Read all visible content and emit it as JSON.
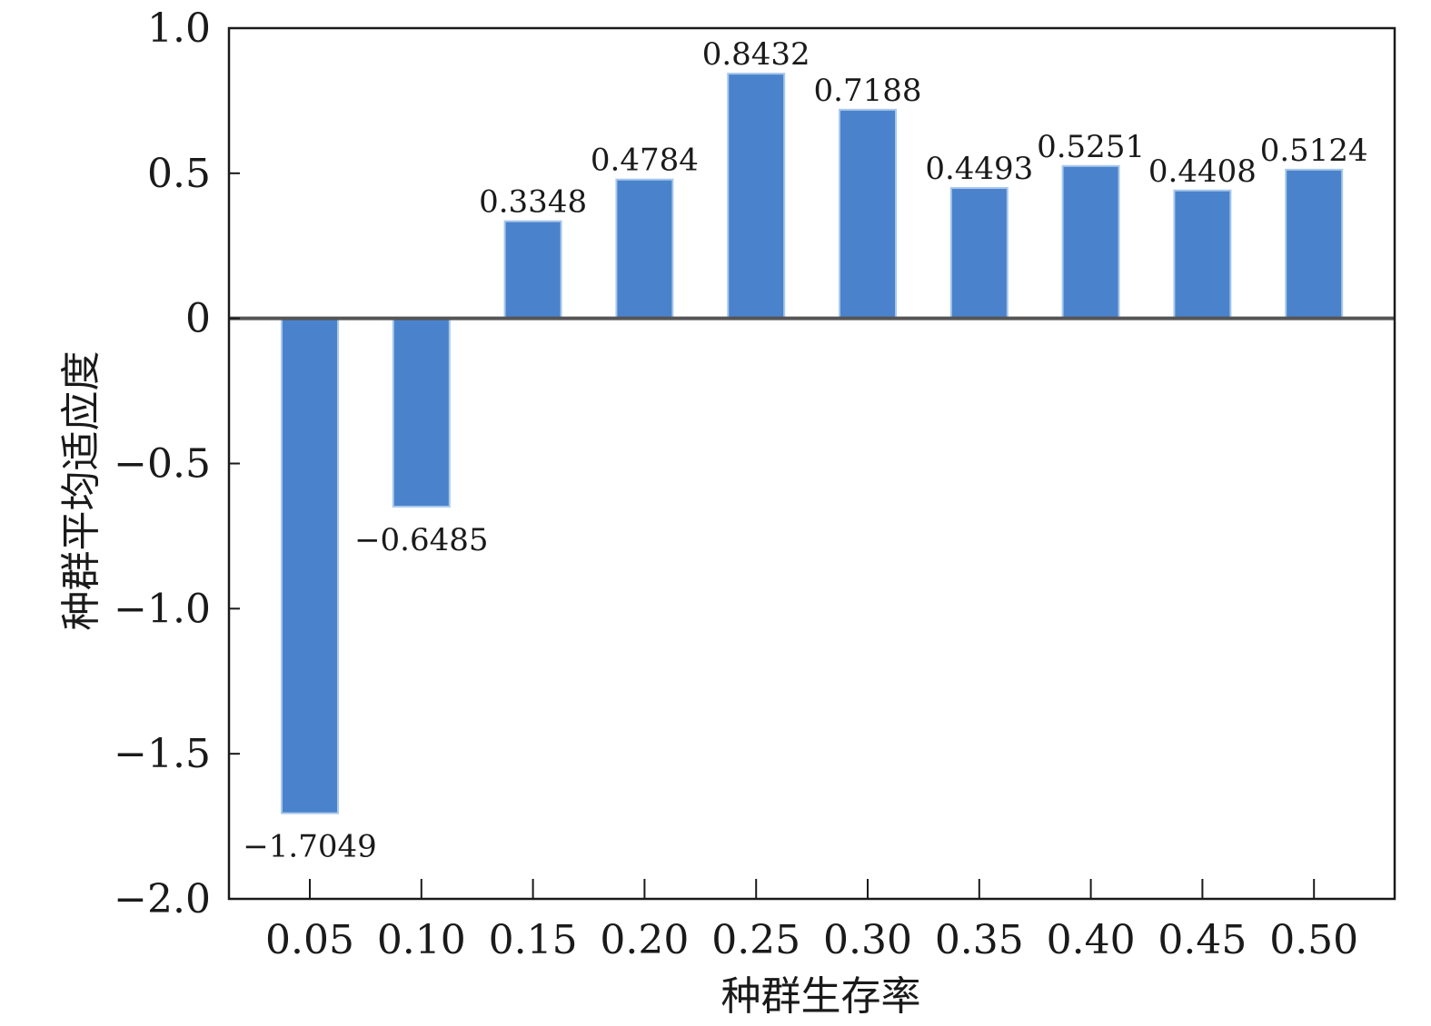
{
  "chart_data": {
    "type": "bar",
    "title": "",
    "xlabel": "种群生存率",
    "ylabel": "种群平均适应度",
    "categories": [
      "0.05",
      "0.10",
      "0.15",
      "0.20",
      "0.25",
      "0.30",
      "0.35",
      "0.40",
      "0.45",
      "0.50"
    ],
    "values": [
      -1.7049,
      -0.6485,
      0.3348,
      0.4784,
      0.8432,
      0.7188,
      0.4493,
      0.5251,
      0.4408,
      0.5124
    ],
    "data_labels": [
      "−1.7049",
      "−0.6485",
      "0.3348",
      "0.4784",
      "0.8432",
      "0.7188",
      "0.4493",
      "0.5251",
      "0.4408",
      "0.5124"
    ],
    "ylim": [
      -2.0,
      1.0
    ],
    "yticks": [
      1.0,
      0.5,
      0,
      -0.5,
      -1.0,
      -1.5,
      -2.0
    ],
    "ytick_labels": [
      "1.0",
      "0.5",
      "0",
      "−0.5",
      "−1.0",
      "−1.5",
      "−2.0"
    ],
    "grid": false,
    "legend": "none",
    "colors": {
      "bar": "#4a83cc",
      "bar_edge": "#a9c8ec",
      "axis": "#1a1a1a",
      "zero_line": "#555555"
    }
  }
}
